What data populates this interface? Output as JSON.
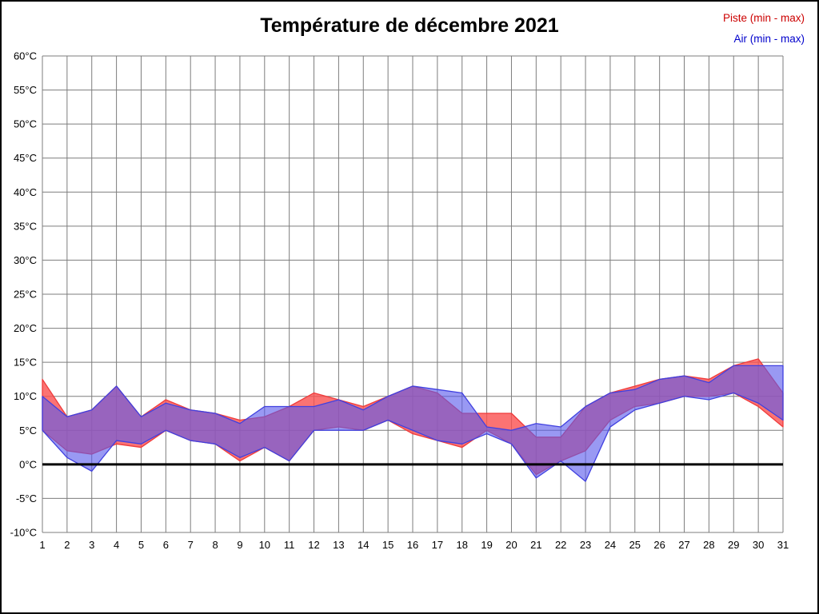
{
  "chart_data": {
    "type": "area",
    "title": "Température de décembre 2021",
    "x": [
      1,
      2,
      3,
      4,
      5,
      6,
      7,
      8,
      9,
      10,
      11,
      12,
      13,
      14,
      15,
      16,
      17,
      18,
      19,
      20,
      21,
      22,
      23,
      24,
      25,
      26,
      27,
      28,
      29,
      30,
      31
    ],
    "xtick_labels": [
      "1",
      "2",
      "3",
      "4",
      "5",
      "6",
      "7",
      "8",
      "9",
      "10",
      "11",
      "12",
      "13",
      "14",
      "15",
      "16",
      "17",
      "18",
      "19",
      "20",
      "21",
      "22",
      "23",
      "24",
      "25",
      "26",
      "27",
      "28",
      "29",
      "30",
      "31"
    ],
    "ylim": [
      -10,
      60
    ],
    "ytick_values": [
      60,
      55,
      50,
      45,
      40,
      35,
      30,
      25,
      20,
      15,
      10,
      5,
      0,
      -5,
      -10
    ],
    "ytick_labels": [
      "60°C",
      "55°C",
      "50°C",
      "45°C",
      "40°C",
      "35°C",
      "30°C",
      "25°C",
      "20°C",
      "15°C",
      "10°C",
      "5°C",
      "0°C",
      "-5°C",
      "-10°C"
    ],
    "grid": true,
    "grid_color": "#7d7d7d",
    "zero_line": true,
    "zero_line_color": "#000000",
    "legend": [
      {
        "label": "Piste (min - max)",
        "color": "#cc0000"
      },
      {
        "label": "Air (min - max)",
        "color": "#0000cc"
      }
    ],
    "series": [
      {
        "name": "Piste",
        "fill": "rgba(250,80,80,0.80)",
        "stroke": "#ef3b3b",
        "min": [
          5,
          2,
          1.5,
          3,
          2.5,
          5,
          3.5,
          3,
          0.5,
          2.5,
          0.5,
          5,
          5.5,
          5,
          6.5,
          4.5,
          3.5,
          2.5,
          5,
          3,
          -1.5,
          0.5,
          2,
          6.5,
          8.5,
          9,
          10,
          10,
          10.5,
          8.5,
          5.5
        ],
        "max": [
          12.5,
          7,
          8,
          11.5,
          7,
          9.5,
          8,
          7.5,
          6.5,
          7,
          8.5,
          10.5,
          9.5,
          8.5,
          10,
          11.5,
          10.5,
          7.5,
          7.5,
          7.5,
          4,
          4,
          8.5,
          10.5,
          11.5,
          12.5,
          13,
          12.5,
          14.5,
          15.5,
          10.5
        ]
      },
      {
        "name": "Air",
        "fill": "rgba(90,90,235,0.62)",
        "stroke": "#4040e0",
        "min": [
          5,
          1,
          -1,
          3.5,
          3,
          5,
          3.5,
          3,
          1,
          2.5,
          0.5,
          5,
          5,
          5,
          6.5,
          5,
          3.5,
          3,
          4.5,
          3,
          -2,
          0.5,
          -2.5,
          5.5,
          8,
          9,
          10,
          9.5,
          10.5,
          9,
          6.5
        ],
        "max": [
          10,
          7,
          8,
          11.5,
          7,
          9,
          8,
          7.5,
          6,
          8.5,
          8.5,
          8.5,
          9.5,
          8,
          10,
          11.5,
          11,
          10.5,
          5.5,
          5,
          6,
          5.5,
          8.5,
          10.5,
          11,
          12.5,
          13,
          12,
          14.5,
          14.5,
          14.5
        ]
      }
    ]
  }
}
